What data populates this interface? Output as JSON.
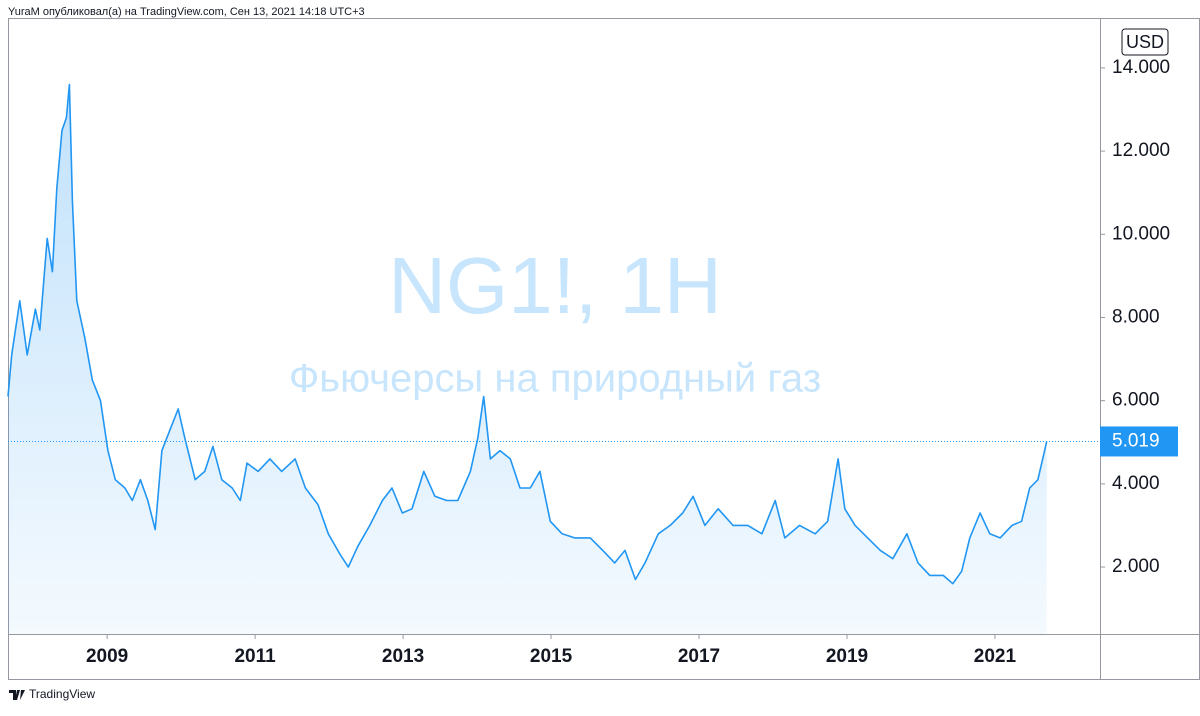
{
  "header": "YuraM опубликовал(а) на TradingView.com, Сен 13, 2021 14:18 UTC+3",
  "footer": "TradingView",
  "chart_data": {
    "type": "line",
    "watermark_title": "NG1!, 1H",
    "watermark_subtitle": "Фьючерсы на природный газ",
    "currency": "USD",
    "color": "#2196f3",
    "x": [
      2007.66,
      2007.71,
      2007.82,
      2007.92,
      2008.03,
      2008.09,
      2008.19,
      2008.26,
      2008.32,
      2008.39,
      2008.45,
      2008.49,
      2008.53,
      2008.59,
      2008.7,
      2008.8,
      2008.91,
      2009.01,
      2009.11,
      2009.24,
      2009.34,
      2009.45,
      2009.55,
      2009.65,
      2009.74,
      2009.85,
      2009.96,
      2010.05,
      2010.19,
      2010.32,
      2010.43,
      2010.55,
      2010.69,
      2010.8,
      2010.89,
      2011.04,
      2011.2,
      2011.36,
      2011.54,
      2011.68,
      2011.85,
      2011.99,
      2012.15,
      2012.26,
      2012.39,
      2012.55,
      2012.72,
      2012.85,
      2012.99,
      2013.12,
      2013.28,
      2013.43,
      2013.59,
      2013.74,
      2013.91,
      2014.01,
      2014.09,
      2014.18,
      2014.31,
      2014.45,
      2014.58,
      2014.72,
      2014.85,
      2014.99,
      2015.15,
      2015.32,
      2015.53,
      2015.7,
      2015.86,
      2016.0,
      2016.14,
      2016.27,
      2016.45,
      2016.61,
      2016.78,
      2016.92,
      2017.08,
      2017.26,
      2017.46,
      2017.66,
      2017.85,
      2018.03,
      2018.16,
      2018.36,
      2018.57,
      2018.74,
      2018.88,
      2018.97,
      2019.11,
      2019.28,
      2019.45,
      2019.62,
      2019.81,
      2019.96,
      2020.12,
      2020.3,
      2020.43,
      2020.55,
      2020.66,
      2020.8,
      2020.93,
      2021.07,
      2021.23,
      2021.36,
      2021.47,
      2021.58,
      2021.7
    ],
    "values": [
      6.1,
      7.1,
      8.4,
      7.1,
      8.2,
      7.7,
      9.9,
      9.1,
      11.1,
      12.5,
      12.8,
      13.6,
      10.8,
      8.4,
      7.5,
      6.5,
      6.0,
      4.8,
      4.1,
      3.9,
      3.6,
      4.1,
      3.6,
      2.9,
      4.8,
      5.3,
      5.8,
      5.1,
      4.1,
      4.3,
      4.9,
      4.1,
      3.9,
      3.6,
      4.5,
      4.3,
      4.6,
      4.3,
      4.6,
      3.9,
      3.5,
      2.8,
      2.3,
      2.0,
      2.5,
      3.0,
      3.6,
      3.9,
      3.3,
      3.4,
      4.3,
      3.7,
      3.6,
      3.6,
      4.3,
      5.1,
      6.1,
      4.6,
      4.8,
      4.6,
      3.9,
      3.9,
      4.3,
      3.1,
      2.8,
      2.7,
      2.7,
      2.4,
      2.1,
      2.4,
      1.7,
      2.1,
      2.8,
      3.0,
      3.3,
      3.7,
      3.0,
      3.4,
      3.0,
      3.0,
      2.8,
      3.6,
      2.7,
      3.0,
      2.8,
      3.1,
      4.6,
      3.4,
      3.0,
      2.7,
      2.4,
      2.2,
      2.8,
      2.1,
      1.8,
      1.8,
      1.6,
      1.9,
      2.7,
      3.3,
      2.8,
      2.7,
      3.0,
      3.1,
      3.9,
      4.1,
      5.019
    ],
    "last_value": 5.019,
    "xlim": [
      2007.66,
      2022.42
    ],
    "ylim": [
      0.39,
      15.2
    ],
    "xticks": [
      2009,
      2011,
      2013,
      2015,
      2017,
      2019,
      2021
    ],
    "yticks": [
      {
        "value": 2,
        "label": "2.000"
      },
      {
        "value": 4,
        "label": "4.000"
      },
      {
        "value": 6,
        "label": "6.000"
      },
      {
        "value": 8,
        "label": "8.000"
      },
      {
        "value": 10,
        "label": "10.000"
      },
      {
        "value": 12,
        "label": "12.000"
      },
      {
        "value": 14,
        "label": "14.000"
      }
    ]
  }
}
